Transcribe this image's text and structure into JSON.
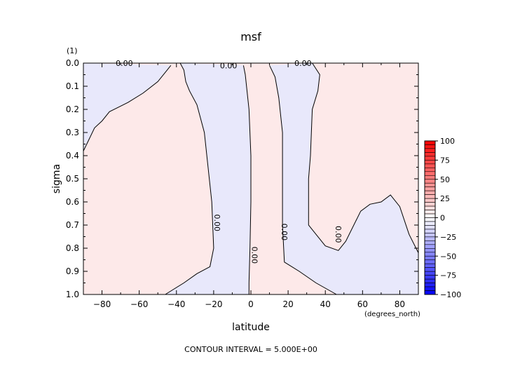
{
  "chart_data": {
    "type": "contour",
    "title": "msf",
    "title_units": "(1)",
    "xlabel": "latitude",
    "xunits": "(degrees_north)",
    "ylabel": "sigma",
    "xlim": [
      -90,
      90
    ],
    "ylim": [
      0.0,
      1.0
    ],
    "y_inverted": true,
    "grid": false,
    "xticks": [
      -80,
      -60,
      -40,
      -20,
      0,
      20,
      40,
      60,
      80
    ],
    "yticks": [
      0.0,
      0.1,
      0.2,
      0.3,
      0.4,
      0.5,
      0.6,
      0.7,
      0.8,
      0.9,
      1.0
    ],
    "xtick_labels": [
      "−80",
      "−60",
      "−40",
      "−20",
      "0",
      "20",
      "40",
      "60",
      "80"
    ],
    "ytick_labels": [
      "0.0",
      "0.1",
      "0.2",
      "0.3",
      "0.4",
      "0.5",
      "0.6",
      "0.7",
      "0.8",
      "0.9",
      "1.0"
    ],
    "contour_interval_text": "CONTOUR INTERVAL = 5.000E+00",
    "contour_labels": [
      {
        "text": "0.00",
        "lat": -68,
        "sigma": 0.0
      },
      {
        "text": "0.00",
        "lat": -12,
        "sigma": 0.01
      },
      {
        "text": "0.00",
        "lat": 28,
        "sigma": 0.0
      },
      {
        "text": "0.00",
        "lat": -18,
        "sigma": 0.69
      },
      {
        "text": "0.00",
        "lat": 2,
        "sigma": 0.83
      },
      {
        "text": "0.00",
        "lat": 18,
        "sigma": 0.73
      },
      {
        "text": "0.00",
        "lat": 47,
        "sigma": 0.74
      }
    ],
    "zero_contours": [
      {
        "name": "tropic-north-side",
        "points": [
          [
            -90,
            0.38
          ],
          [
            -87,
            0.33
          ],
          [
            -84,
            0.28
          ],
          [
            -80,
            0.25
          ],
          [
            -76,
            0.21
          ],
          [
            -71,
            0.19
          ],
          [
            -66,
            0.17
          ],
          [
            -58,
            0.13
          ],
          [
            -50,
            0.08
          ],
          [
            -45,
            0.03
          ],
          [
            -43,
            0.01
          ]
        ]
      },
      {
        "name": "south-cell-boundary-west",
        "points": [
          [
            -38,
            0.0
          ],
          [
            -36,
            0.03
          ],
          [
            -35,
            0.08
          ],
          [
            -33,
            0.12
          ],
          [
            -29,
            0.18
          ],
          [
            -25,
            0.3
          ],
          [
            -23,
            0.45
          ],
          [
            -21,
            0.6
          ],
          [
            -20,
            0.8
          ],
          [
            -22,
            0.88
          ],
          [
            -29,
            0.91
          ],
          [
            -36,
            0.95
          ],
          [
            -46,
            1.0
          ]
        ]
      },
      {
        "name": "south-cell-boundary-east",
        "points": [
          [
            -4,
            0.01
          ],
          [
            -3,
            0.05
          ],
          [
            -1,
            0.2
          ],
          [
            0,
            0.4
          ],
          [
            0,
            0.6
          ],
          [
            -0.5,
            0.8
          ],
          [
            -1,
            0.95
          ],
          [
            -1,
            1.0
          ]
        ]
      },
      {
        "name": "north-cell-boundary-west",
        "points": [
          [
            10,
            0.01
          ],
          [
            13,
            0.06
          ],
          [
            15,
            0.15
          ],
          [
            17,
            0.3
          ],
          [
            17,
            0.5
          ],
          [
            17,
            0.7
          ],
          [
            18,
            0.86
          ],
          [
            26,
            0.9
          ],
          [
            35,
            0.95
          ],
          [
            46,
            1.0
          ]
        ]
      },
      {
        "name": "north-cell-boundary-east",
        "points": [
          [
            33,
            0.0
          ],
          [
            37,
            0.05
          ],
          [
            36,
            0.12
          ],
          [
            33,
            0.2
          ],
          [
            32,
            0.4
          ],
          [
            31,
            0.5
          ],
          [
            31,
            0.7
          ],
          [
            34,
            0.73
          ],
          [
            40,
            0.79
          ],
          [
            47,
            0.81
          ],
          [
            51,
            0.77
          ],
          [
            59,
            0.64
          ],
          [
            64,
            0.61
          ],
          [
            70,
            0.6
          ],
          [
            75,
            0.57
          ],
          [
            80,
            0.62
          ],
          [
            85,
            0.74
          ],
          [
            90,
            0.82
          ]
        ]
      }
    ],
    "regions": [
      {
        "name": "negative-southern-polar",
        "sign": "negative"
      },
      {
        "name": "positive-southern-midlat",
        "sign": "positive"
      },
      {
        "name": "negative-south-cell",
        "sign": "negative"
      },
      {
        "name": "positive-equatorial",
        "sign": "positive"
      },
      {
        "name": "negative-north-cell",
        "sign": "negative"
      },
      {
        "name": "positive-northern-high-lat",
        "sign": "positive"
      }
    ],
    "colorbar": {
      "levels": [
        100,
        75,
        50,
        25,
        0,
        -25,
        -50,
        -75,
        -100
      ],
      "labels": [
        "100",
        "75",
        "50",
        "25",
        "0",
        "−25",
        "−50",
        "−75",
        "−100"
      ],
      "colors": [
        "#ff0000",
        "#ff4040",
        "#ff8080",
        "#ffc0c0",
        "#ffffff",
        "#c0c0ff",
        "#8080ff",
        "#4040ff",
        "#0000ff"
      ],
      "positive_fill": "#fde9e9",
      "negative_fill": "#e8e8fb"
    }
  }
}
